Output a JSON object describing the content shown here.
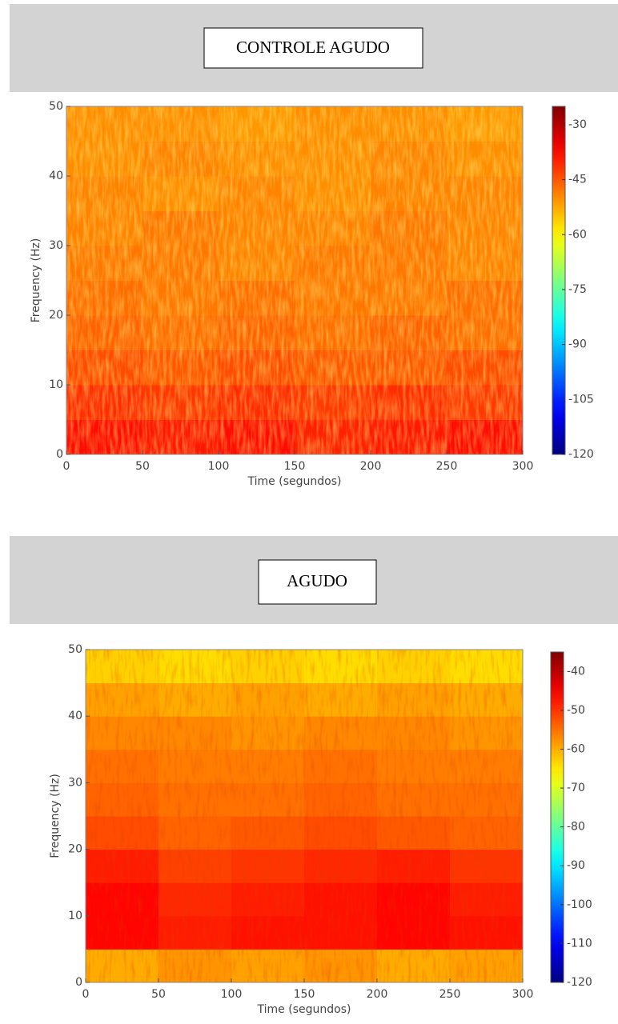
{
  "chart_data": [
    {
      "type": "spectrogram",
      "title": "CONTROLE AGUDO",
      "x_label": "Time (segundos)",
      "y_label": "Frequency (Hz)",
      "xlim": [
        0,
        300
      ],
      "ylim": [
        0,
        50
      ],
      "xticks": [
        0,
        50,
        100,
        150,
        200,
        250,
        300
      ],
      "yticks": [
        0,
        10,
        20,
        30,
        40,
        50
      ],
      "zlim": [
        -120,
        -25
      ],
      "zticks": [
        -30,
        -45,
        -60,
        -75,
        -90,
        -105,
        -120
      ],
      "colormap": "jet",
      "values": [
        [
          -38,
          -39,
          -38,
          -40,
          -39,
          -38
        ],
        [
          -41,
          -42,
          -41,
          -42,
          -41,
          -42
        ],
        [
          -44,
          -45,
          -44,
          -45,
          -45,
          -44
        ],
        [
          -46,
          -47,
          -46,
          -47,
          -46,
          -47
        ],
        [
          -47,
          -48,
          -47,
          -48,
          -48,
          -47
        ],
        [
          -48,
          -48,
          -49,
          -48,
          -48,
          -49
        ],
        [
          -49,
          -48,
          -49,
          -49,
          -48,
          -49
        ],
        [
          -49,
          -50,
          -49,
          -50,
          -49,
          -49
        ],
        [
          -50,
          -49,
          -50,
          -50,
          -49,
          -50
        ],
        [
          -50,
          -50,
          -51,
          -50,
          -50,
          -51
        ]
      ]
    },
    {
      "type": "spectrogram",
      "title": "AGUDO",
      "x_label": "Time (segundos)",
      "y_label": "Frequency (Hz)",
      "xlim": [
        0,
        300
      ],
      "ylim": [
        0,
        50
      ],
      "xticks": [
        0,
        50,
        100,
        150,
        200,
        250,
        300
      ],
      "yticks": [
        0,
        10,
        20,
        30,
        40,
        50
      ],
      "zlim": [
        -120,
        -35
      ],
      "zticks": [
        -40,
        -50,
        -60,
        -70,
        -80,
        -90,
        -100,
        -110,
        -120
      ],
      "colormap": "jet",
      "values": [
        [
          -60,
          -58,
          -59,
          -58,
          -60,
          -59
        ],
        [
          -46,
          -48,
          -47,
          -47,
          -46,
          -47
        ],
        [
          -46,
          -49,
          -48,
          -47,
          -46,
          -48
        ],
        [
          -48,
          -51,
          -50,
          -49,
          -48,
          -50
        ],
        [
          -52,
          -54,
          -53,
          -52,
          -53,
          -54
        ],
        [
          -54,
          -55,
          -55,
          -54,
          -55,
          -55
        ],
        [
          -55,
          -56,
          -56,
          -55,
          -56,
          -56
        ],
        [
          -57,
          -57,
          -58,
          -57,
          -57,
          -58
        ],
        [
          -59,
          -60,
          -59,
          -60,
          -59,
          -60
        ],
        [
          -63,
          -64,
          -63,
          -64,
          -63,
          -64
        ]
      ]
    }
  ]
}
